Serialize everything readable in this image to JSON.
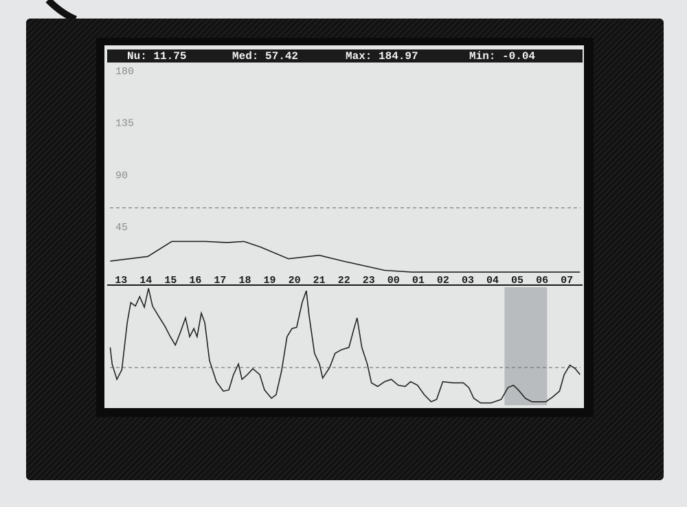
{
  "header": {
    "items": [
      "Nu: 11.75",
      "Med: 57.42",
      "Max: 184.97",
      "Min: -0.04"
    ]
  },
  "chart_data": [
    {
      "type": "line",
      "color": "#222222",
      "x": [
        -0.44,
        1.08,
        2.05,
        3.43,
        4.27,
        4.96,
        5.65,
        6.76,
        8.0,
        8.97,
        10.64,
        11.75,
        18.53
      ],
      "values": [
        16,
        20,
        33,
        33,
        32,
        33,
        28,
        18,
        21,
        16,
        8,
        6.5,
        6.5
      ],
      "xlim": [
        -0.45,
        18.55
      ],
      "xticks": [
        {
          "value": 0,
          "label": "13"
        },
        {
          "value": 1,
          "label": "14"
        },
        {
          "value": 2,
          "label": "15"
        },
        {
          "value": 3,
          "label": "16"
        },
        {
          "value": 4,
          "label": "17"
        },
        {
          "value": 5,
          "label": "18"
        },
        {
          "value": 6,
          "label": "19"
        },
        {
          "value": 7,
          "label": "20"
        },
        {
          "value": 8,
          "label": "21"
        },
        {
          "value": 9,
          "label": "22"
        },
        {
          "value": 10,
          "label": "23"
        },
        {
          "value": 11,
          "label": "00"
        },
        {
          "value": 12,
          "label": "01"
        },
        {
          "value": 13,
          "label": "02"
        },
        {
          "value": 14,
          "label": "03"
        },
        {
          "value": 15,
          "label": "04"
        },
        {
          "value": 16,
          "label": "05"
        },
        {
          "value": 17,
          "label": "06"
        },
        {
          "value": 18,
          "label": "07"
        }
      ],
      "ylim": [
        0,
        180
      ],
      "yticks": [
        180,
        135,
        90,
        45
      ],
      "reference_line": 62
    },
    {
      "type": "line",
      "color": "#222222",
      "x": [
        -0.44,
        -0.36,
        -0.17,
        0.03,
        0.25,
        0.39,
        0.58,
        0.75,
        0.94,
        1.11,
        1.27,
        1.5,
        1.77,
        1.99,
        2.19,
        2.38,
        2.6,
        2.77,
        2.94,
        3.07,
        3.24,
        3.38,
        3.57,
        3.85,
        4.13,
        4.35,
        4.54,
        4.74,
        4.88,
        5.1,
        5.32,
        5.6,
        5.79,
        6.07,
        6.26,
        6.48,
        6.7,
        6.9,
        7.09,
        7.31,
        7.48,
        7.59,
        7.81,
        8.01,
        8.14,
        8.42,
        8.64,
        8.89,
        9.2,
        9.39,
        9.53,
        9.72,
        9.94,
        10.11,
        10.36,
        10.64,
        10.91,
        11.19,
        11.47,
        11.69,
        11.97,
        12.24,
        12.52,
        12.74,
        12.99,
        13.41,
        13.82,
        14.04,
        14.24,
        14.52,
        14.93,
        15.35,
        15.62,
        15.84,
        16.04,
        16.32,
        16.59,
        17.15,
        17.42,
        17.7,
        17.89,
        18.12,
        18.34,
        18.53
      ],
      "values": [
        49,
        35,
        22,
        30,
        70,
        87,
        84,
        92,
        83,
        99,
        84,
        76,
        67,
        58,
        51,
        61,
        74,
        58,
        65,
        58,
        78,
        70,
        38,
        20,
        12,
        13,
        26,
        35,
        22,
        26,
        31,
        26,
        13,
        6,
        9,
        29,
        58,
        65,
        66,
        87,
        97,
        76,
        44,
        35,
        23,
        32,
        44,
        47,
        49,
        64,
        74,
        49,
        35,
        19,
        16,
        20,
        22,
        17,
        16,
        20,
        17,
        9,
        3,
        5,
        20,
        19,
        19,
        15,
        6,
        2,
        2,
        5,
        15,
        17,
        13,
        6,
        3,
        3,
        7,
        12,
        26,
        34,
        31,
        26
      ],
      "xlim": [
        -0.45,
        18.55
      ],
      "ylim": [
        0,
        100
      ],
      "highlight": [
        15.48,
        17.2
      ],
      "reference_line": 32
    }
  ]
}
